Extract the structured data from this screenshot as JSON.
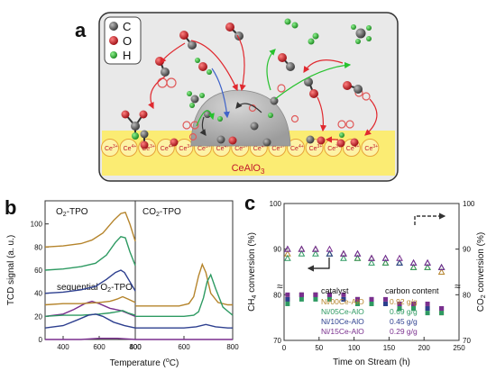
{
  "panel_a": {
    "label": "a",
    "legend": [
      {
        "symbol": "C",
        "color": "#555555"
      },
      {
        "symbol": "O",
        "color": "#d0202a"
      },
      {
        "symbol": "H",
        "color": "#2fb52f"
      }
    ],
    "substrate": "CeAlO",
    "substrate_sub": "3",
    "ion_base": "Ce",
    "ion_charges": [
      "3+",
      "4+",
      "3+",
      "4+",
      "3+",
      "3+",
      "4+",
      "3+",
      "4+",
      "3+",
      "4+",
      "3+",
      "3+",
      "4+",
      "3+"
    ]
  },
  "chart_data": [
    {
      "type": "line",
      "panel": "b",
      "title_left": "O2-TPO",
      "title_right": "CO2-TPO",
      "annotation": "sequential O2-TPO",
      "xlabel": "Temperature (°C)",
      "ylabel": "TCD signal (a. u.)",
      "xlim_left": [
        300,
        800
      ],
      "xlim_right": [
        400,
        800
      ],
      "ylim": [
        0,
        120
      ],
      "left_xticks": [
        400,
        600,
        800
      ],
      "right_xticks": [
        400,
        600,
        800
      ],
      "yticks": [
        0,
        20,
        40,
        60,
        80,
        100
      ],
      "series_left": [
        {
          "color": "#b5842b",
          "x": [
            300,
            400,
            500,
            560,
            620,
            680,
            720,
            745,
            770,
            800
          ],
          "y": [
            80,
            81,
            83,
            86,
            92,
            103,
            109,
            110,
            100,
            85
          ]
        },
        {
          "color": "#2e9a62",
          "x": [
            300,
            400,
            500,
            580,
            640,
            690,
            720,
            745,
            770,
            800
          ],
          "y": [
            60,
            61,
            63,
            66,
            73,
            84,
            89,
            88,
            76,
            64
          ]
        },
        {
          "color": "#2d3f8f",
          "x": [
            300,
            400,
            500,
            580,
            640,
            690,
            720,
            740,
            770,
            800
          ],
          "y": [
            40,
            41,
            43,
            46,
            52,
            58,
            60,
            58,
            50,
            42
          ]
        },
        {
          "color": "#7a2f8e",
          "x": [
            300,
            400,
            460,
            520,
            560,
            600,
            660,
            720,
            770,
            800
          ],
          "y": [
            20,
            22,
            26,
            31,
            33,
            31,
            27,
            25,
            22,
            20
          ]
        },
        {
          "color": "#b5842b",
          "x": [
            300,
            400,
            500,
            600,
            660,
            700,
            730,
            760,
            800
          ],
          "y": [
            30,
            31,
            31,
            32,
            33,
            35,
            37,
            35,
            32
          ]
        },
        {
          "color": "#2e9a62",
          "x": [
            300,
            400,
            500,
            600,
            660,
            700,
            730,
            760,
            800
          ],
          "y": [
            20,
            21,
            21,
            22,
            23,
            24,
            25,
            23,
            21
          ]
        },
        {
          "color": "#2d3f8f",
          "x": [
            300,
            400,
            480,
            540,
            580,
            620,
            680,
            740,
            800
          ],
          "y": [
            10,
            12,
            17,
            21,
            22,
            20,
            15,
            12,
            10
          ]
        },
        {
          "color": "#7a2f8e",
          "x": [
            300,
            400,
            500,
            600,
            700,
            800
          ],
          "y": [
            0,
            0,
            0,
            1,
            1,
            0
          ]
        }
      ],
      "series_right": [
        {
          "color": "#b5842b",
          "x": [
            400,
            500,
            580,
            620,
            640,
            660,
            675,
            690,
            710,
            740,
            780,
            800
          ],
          "y": [
            29,
            29,
            29,
            31,
            37,
            55,
            65,
            58,
            40,
            32,
            30,
            30
          ]
        },
        {
          "color": "#2e9a62",
          "x": [
            400,
            500,
            600,
            640,
            660,
            680,
            695,
            710,
            730,
            760,
            800
          ],
          "y": [
            20,
            20,
            20,
            21,
            24,
            36,
            50,
            56,
            44,
            28,
            21
          ]
        },
        {
          "color": "#2d3f8f",
          "x": [
            400,
            500,
            600,
            650,
            690,
            730,
            780,
            800
          ],
          "y": [
            10,
            10,
            10,
            11,
            13,
            11,
            10,
            10
          ]
        },
        {
          "color": "#7a2f8e",
          "x": [
            400,
            500,
            600,
            700,
            800
          ],
          "y": [
            0,
            0,
            0,
            0,
            0
          ]
        }
      ]
    },
    {
      "type": "scatter",
      "panel": "c",
      "xlabel": "Time on Stream (h)",
      "ylabel_left": "CH4 conversion (%)",
      "ylabel_right": "CO2 conversion (%)",
      "xlim": [
        0,
        250
      ],
      "ylim": [
        70,
        100
      ],
      "xticks": [
        0,
        50,
        100,
        150,
        200,
        250
      ],
      "yticks_left": [
        70,
        80,
        90,
        100
      ],
      "yticks_right": [
        70,
        80,
        90,
        100
      ],
      "legend_title": "catalyst",
      "legend_title_2": "carbon content",
      "series": [
        {
          "name": "Ni/00Ce-AlO",
          "carbon": "0.92  g/g",
          "color": "#b5842b",
          "ch4": [
            79,
            80,
            80,
            80,
            79,
            79,
            78,
            78,
            77,
            77,
            77,
            76
          ],
          "co2": [
            89,
            90,
            90,
            89,
            89,
            88,
            88,
            87,
            87,
            86,
            86,
            85
          ]
        },
        {
          "name": "Ni/05Ce-AlO",
          "carbon": "0.69  g/g",
          "color": "#2e9a62",
          "ch4": [
            78,
            79,
            79,
            79,
            79,
            78,
            78,
            78,
            77,
            77,
            76,
            76
          ],
          "co2": [
            88,
            89,
            89,
            89,
            88,
            88,
            87,
            87,
            87,
            86,
            86,
            86
          ]
        },
        {
          "name": "Ni/10Ce-AlO",
          "carbon": "0.45  g/g",
          "color": "#2d3f8f",
          "ch4": [
            79,
            80,
            80,
            80,
            79,
            79,
            79,
            78,
            78,
            78,
            77,
            77
          ],
          "co2": [
            90,
            90,
            90,
            89,
            89,
            89,
            88,
            88,
            87,
            87,
            87,
            86
          ]
        },
        {
          "name": "Ni/15Ce-AlO",
          "carbon": "0.29  g/g",
          "color": "#7a2f8e",
          "ch4": [
            80,
            80,
            80,
            80,
            80,
            79,
            79,
            79,
            78,
            78,
            78,
            77
          ],
          "co2": [
            90,
            90,
            90,
            90,
            89,
            89,
            88,
            88,
            88,
            87,
            87,
            86
          ]
        }
      ],
      "x": [
        5,
        25,
        45,
        65,
        85,
        105,
        125,
        145,
        165,
        185,
        205,
        225
      ]
    }
  ]
}
